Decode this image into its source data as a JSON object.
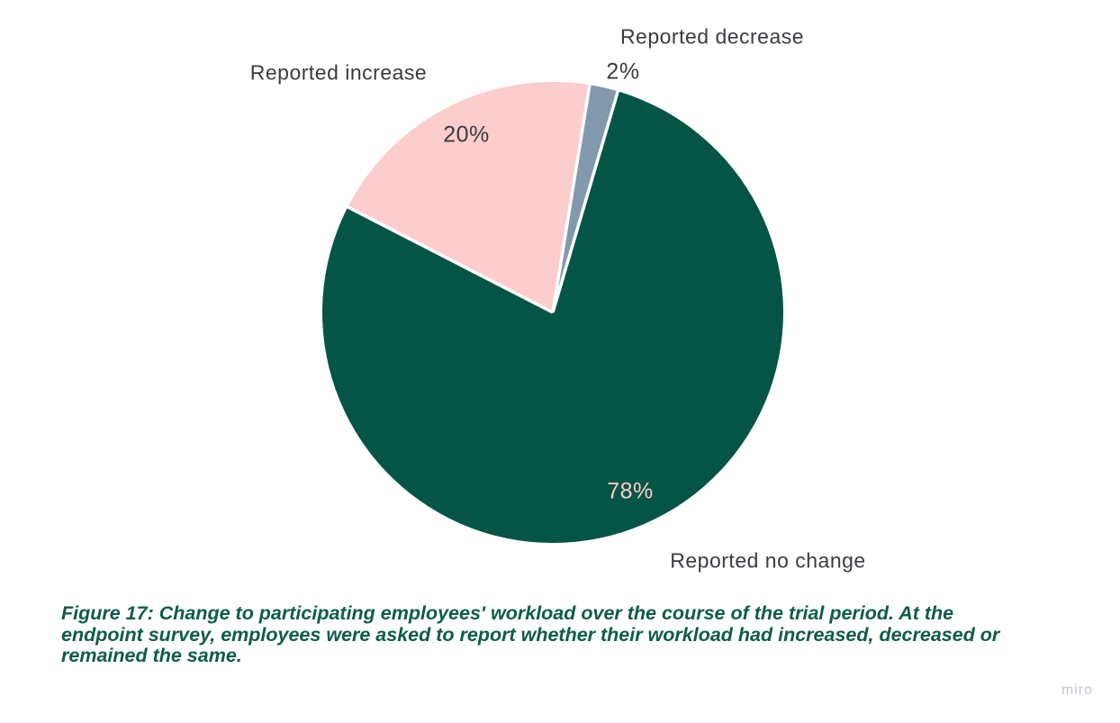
{
  "chart_data": {
    "type": "pie",
    "title": "",
    "start_angle_deg": -62.8,
    "slices": [
      {
        "id": "increase",
        "label": "Reported increase",
        "value": 20,
        "display": "20%",
        "color": "#fbcdcc"
      },
      {
        "id": "decrease",
        "label": "Reported decrease",
        "value": 2,
        "display": "2%",
        "color": "#8298ac"
      },
      {
        "id": "no_change",
        "label": "Reported no change",
        "value": 78,
        "display": "78%",
        "color": "#045546"
      }
    ],
    "separator_color": "#ffffff",
    "legend_position": "labels-around-pie",
    "grid": false
  },
  "colors": {
    "label_text": "#3b3b41",
    "pct_on_green": "#fbcdcc",
    "caption_text": "#0d5c4a",
    "watermark_text": "#c5c4d4"
  },
  "caption": {
    "lines": [
      "Figure 17: Change to participating employees' workload over the course of the trial period. At the",
      "endpoint survey, employees were asked to report whether their workload had increased, decreased or",
      "remained the same."
    ]
  },
  "watermark": {
    "text": "miro"
  }
}
